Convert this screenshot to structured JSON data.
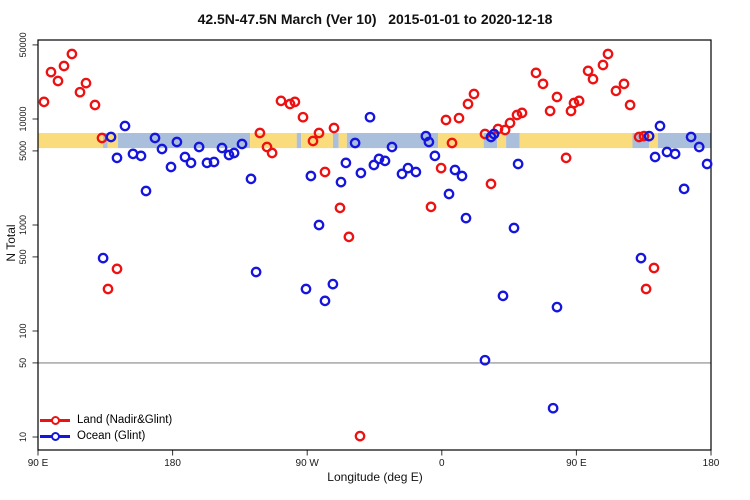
{
  "chart_data": {
    "type": "scatter",
    "title": "42.5N-47.5N March (Ver 10)   2015-01-01 to 2020-12-18",
    "xlabel": "Longitude (deg E)",
    "ylabel": "N Total",
    "x_axis": {
      "min": 90,
      "max": 540,
      "ticks": [
        {
          "v": 90,
          "label": "90 E"
        },
        {
          "v": 180,
          "label": "180"
        },
        {
          "v": 270,
          "label": "90 W"
        },
        {
          "v": 360,
          "label": "0"
        },
        {
          "v": 450,
          "label": "90 E"
        },
        {
          "v": 540,
          "label": "180"
        }
      ]
    },
    "y_axis": {
      "scale": "log",
      "min": 8,
      "max": 55000,
      "ticks": [
        {
          "v": 50000,
          "label": "50000"
        },
        {
          "v": 10000,
          "label": "10000"
        },
        {
          "v": 5000,
          "label": "5000"
        },
        {
          "v": 1000,
          "label": "1000"
        },
        {
          "v": 500,
          "label": "500"
        },
        {
          "v": 100,
          "label": "100"
        },
        {
          "v": 50,
          "label": "50"
        },
        {
          "v": 10,
          "label": "10"
        }
      ]
    },
    "reference_line": {
      "value": 50,
      "color": "#888888"
    },
    "surface_band": {
      "n_top": 7380,
      "n_bottom": 5320,
      "land_color": "#fbdc7d",
      "ocean_color": "#a9bfdb",
      "segments": [
        {
          "from": 90,
          "to": 133.5,
          "surface": "land"
        },
        {
          "from": 133.5,
          "to": 136.5,
          "surface": "ocean"
        },
        {
          "from": 136.5,
          "to": 143.5,
          "surface": "land"
        },
        {
          "from": 143.5,
          "to": 231.8,
          "surface": "ocean"
        },
        {
          "from": 231.8,
          "to": 263,
          "surface": "land"
        },
        {
          "from": 263,
          "to": 266,
          "surface": "ocean"
        },
        {
          "from": 266,
          "to": 287.2,
          "surface": "land"
        },
        {
          "from": 287.2,
          "to": 291,
          "surface": "ocean"
        },
        {
          "from": 291,
          "to": 296.5,
          "surface": "land"
        },
        {
          "from": 296.5,
          "to": 357.5,
          "surface": "ocean"
        },
        {
          "from": 357.5,
          "to": 388,
          "surface": "land"
        },
        {
          "from": 388,
          "to": 397,
          "surface": "ocean"
        },
        {
          "from": 397,
          "to": 403,
          "surface": "land"
        },
        {
          "from": 403,
          "to": 412,
          "surface": "ocean"
        },
        {
          "from": 412,
          "to": 487.5,
          "surface": "land"
        },
        {
          "from": 487.5,
          "to": 498.5,
          "surface": "ocean"
        },
        {
          "from": 498.5,
          "to": 504.5,
          "surface": "land"
        },
        {
          "from": 504.5,
          "to": 540,
          "surface": "ocean"
        }
      ]
    },
    "series": [
      {
        "name": "Land (Nadir&Glint)",
        "color": "#ee1111",
        "points": [
          [
            94.0,
            14500
          ],
          [
            98.7,
            27700
          ],
          [
            103.4,
            22800
          ],
          [
            107.4,
            31600
          ],
          [
            112.7,
            41000
          ],
          [
            118.1,
            17900
          ],
          [
            122.1,
            21800
          ],
          [
            128.1,
            13550
          ],
          [
            132.8,
            6610
          ],
          [
            136.8,
            249
          ],
          [
            142.8,
            385
          ],
          [
            238.4,
            7380
          ],
          [
            243.1,
            5440
          ],
          [
            246.5,
            4780
          ],
          [
            252.5,
            14800
          ],
          [
            258.5,
            13840
          ],
          [
            261.8,
            14500
          ],
          [
            267.2,
            10400
          ],
          [
            273.9,
            6200
          ],
          [
            277.9,
            7380
          ],
          [
            281.9,
            3160
          ],
          [
            287.9,
            8220
          ],
          [
            291.9,
            1450
          ],
          [
            297.9,
            771
          ],
          [
            305.3,
            10.2
          ],
          [
            352.8,
            1480
          ],
          [
            359.5,
            3440
          ],
          [
            362.8,
            9780
          ],
          [
            366.8,
            5930
          ],
          [
            371.5,
            10200
          ],
          [
            377.5,
            13840
          ],
          [
            381.5,
            17200
          ],
          [
            388.9,
            7210
          ],
          [
            392.9,
            2440
          ],
          [
            397.6,
            8040
          ],
          [
            402.3,
            7870
          ],
          [
            405.6,
            9160
          ],
          [
            410.3,
            10900
          ],
          [
            413.6,
            11400
          ],
          [
            423.0,
            27200
          ],
          [
            427.7,
            21400
          ],
          [
            432.4,
            11900
          ],
          [
            437.0,
            16100
          ],
          [
            443.1,
            4290
          ],
          [
            446.4,
            11900
          ],
          [
            448.4,
            14160
          ],
          [
            451.8,
            14800
          ],
          [
            457.8,
            28400
          ],
          [
            461.1,
            23800
          ],
          [
            467.8,
            32300
          ],
          [
            471.1,
            41000
          ],
          [
            476.5,
            18400
          ],
          [
            481.8,
            21400
          ],
          [
            485.9,
            13550
          ],
          [
            491.9,
            6760
          ],
          [
            495.2,
            6900
          ],
          [
            496.6,
            249
          ],
          [
            501.9,
            393
          ]
        ]
      },
      {
        "name": "Ocean (Glint)",
        "color": "#1515dd",
        "points": [
          [
            133.5,
            487
          ],
          [
            138.8,
            6760
          ],
          [
            142.8,
            4290
          ],
          [
            148.2,
            8590
          ],
          [
            153.5,
            4680
          ],
          [
            158.9,
            4480
          ],
          [
            162.2,
            2090
          ],
          [
            168.2,
            6610
          ],
          [
            172.9,
            5210
          ],
          [
            178.9,
            3520
          ],
          [
            182.9,
            6070
          ],
          [
            188.3,
            4380
          ],
          [
            192.3,
            3850
          ],
          [
            197.7,
            5440
          ],
          [
            203.0,
            3850
          ],
          [
            207.7,
            3930
          ],
          [
            213.0,
            5320
          ],
          [
            217.7,
            4570
          ],
          [
            221.1,
            4780
          ],
          [
            226.4,
            5810
          ],
          [
            232.4,
            2720
          ],
          [
            235.8,
            360
          ],
          [
            269.2,
            249
          ],
          [
            272.5,
            2900
          ],
          [
            277.9,
            1000
          ],
          [
            281.9,
            192
          ],
          [
            287.2,
            277
          ],
          [
            292.6,
            2540
          ],
          [
            295.9,
            3850
          ],
          [
            302.0,
            5930
          ],
          [
            305.9,
            3090
          ],
          [
            312.0,
            10400
          ],
          [
            314.6,
            3680
          ],
          [
            318.0,
            4200
          ],
          [
            322.0,
            4020
          ],
          [
            326.7,
            5440
          ],
          [
            333.4,
            3030
          ],
          [
            337.4,
            3440
          ],
          [
            342.7,
            3160
          ],
          [
            349.4,
            6900
          ],
          [
            351.4,
            6070
          ],
          [
            355.4,
            4480
          ],
          [
            364.8,
            1960
          ],
          [
            368.8,
            3300
          ],
          [
            373.5,
            2900
          ],
          [
            376.2,
            1160
          ],
          [
            388.9,
            53
          ],
          [
            392.9,
            6760
          ],
          [
            394.9,
            7210
          ],
          [
            400.9,
            214
          ],
          [
            408.3,
            937
          ],
          [
            411.0,
            3760
          ],
          [
            434.4,
            18.7
          ],
          [
            437.0,
            168
          ],
          [
            493.2,
            487
          ],
          [
            498.6,
            6900
          ],
          [
            502.6,
            4380
          ],
          [
            505.9,
            8590
          ],
          [
            510.6,
            4880
          ],
          [
            516.0,
            4680
          ],
          [
            522.0,
            2190
          ],
          [
            526.7,
            6760
          ],
          [
            532.1,
            5440
          ],
          [
            537.4,
            3760
          ]
        ]
      }
    ],
    "legend_position": "bottom-left"
  }
}
